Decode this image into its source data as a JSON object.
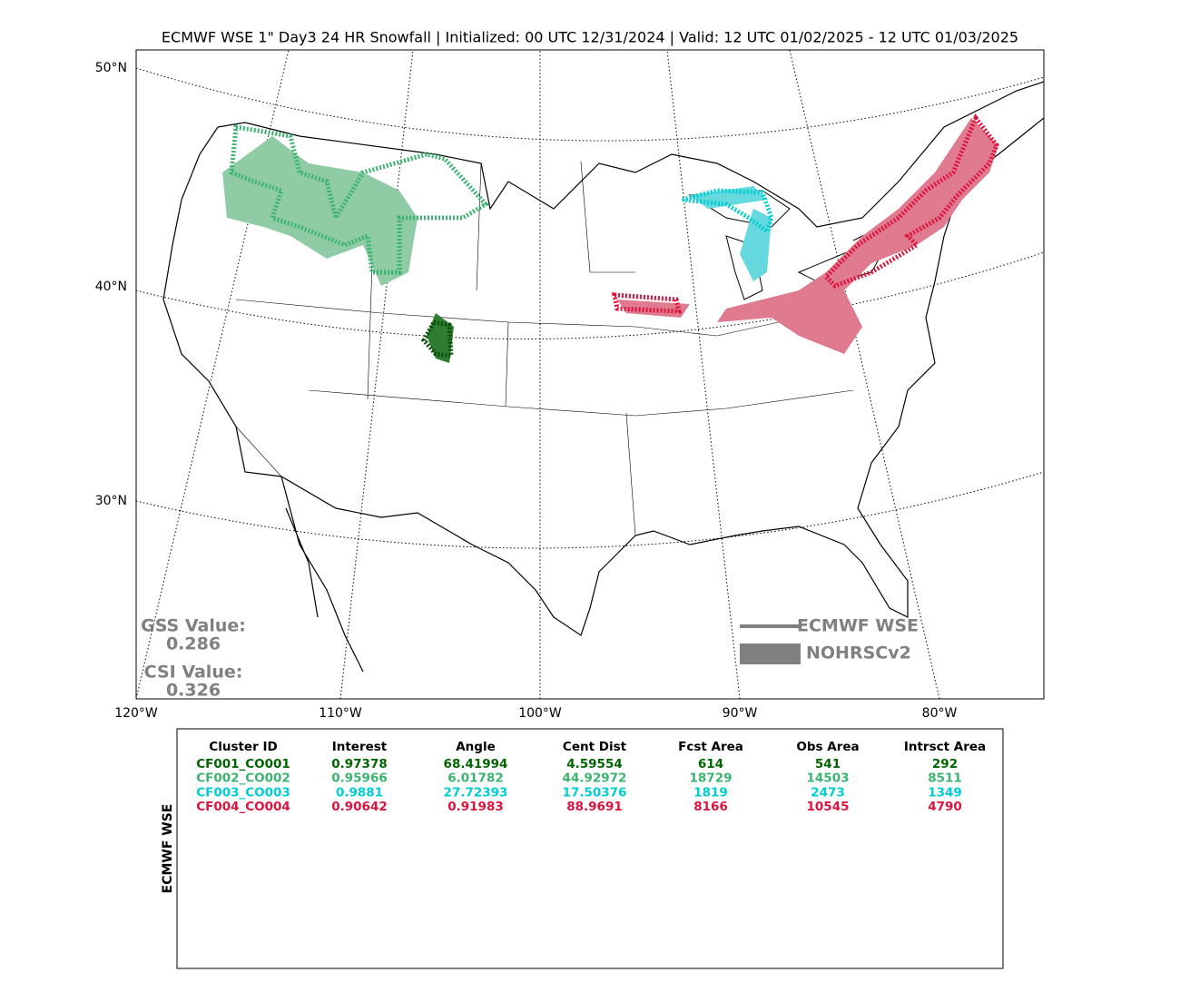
{
  "title": "ECMWF WSE 1\" Day3 24 HR Snowfall | Initialized: 00 UTC 12/31/2024 | Valid: 12 UTC 01/02/2025 - 12 UTC 01/03/2025",
  "map": {
    "lat_labels": [
      "50°N",
      "40°N",
      "30°N"
    ],
    "lon_labels": [
      "120°W",
      "110°W",
      "100°W",
      "90°W",
      "80°W"
    ],
    "gss_label": "GSS Value:",
    "gss_value": "0.286",
    "csi_label": "CSI Value:",
    "csi_value": "0.326",
    "legend": [
      "ECMWF WSE",
      "NOHRSCv2"
    ]
  },
  "table": {
    "side_label": "ECMWF WSE",
    "header": [
      "Cluster ID",
      "Interest",
      "Angle",
      "Cent Dist",
      "Fcst Area",
      "Obs Area",
      "Intrsct Area"
    ],
    "rows": [
      {
        "color": "#006400",
        "cells": [
          "CF001_CO001",
          "0.97378",
          "68.41994",
          "4.59554",
          "614",
          "541",
          "292"
        ]
      },
      {
        "color": "#3cb371",
        "cells": [
          "CF002_CO002",
          "0.95966",
          "6.01782",
          "44.92972",
          "18729",
          "14503",
          "8511"
        ]
      },
      {
        "color": "#00ced1",
        "cells": [
          "CF003_CO003",
          "0.9881",
          "27.72393",
          "17.50376",
          "1819",
          "2473",
          "1349"
        ]
      },
      {
        "color": "#dc143c",
        "cells": [
          "CF004_CO004",
          "0.90642",
          "0.91983",
          "88.9691",
          "8166",
          "10545",
          "4790"
        ]
      }
    ]
  }
}
